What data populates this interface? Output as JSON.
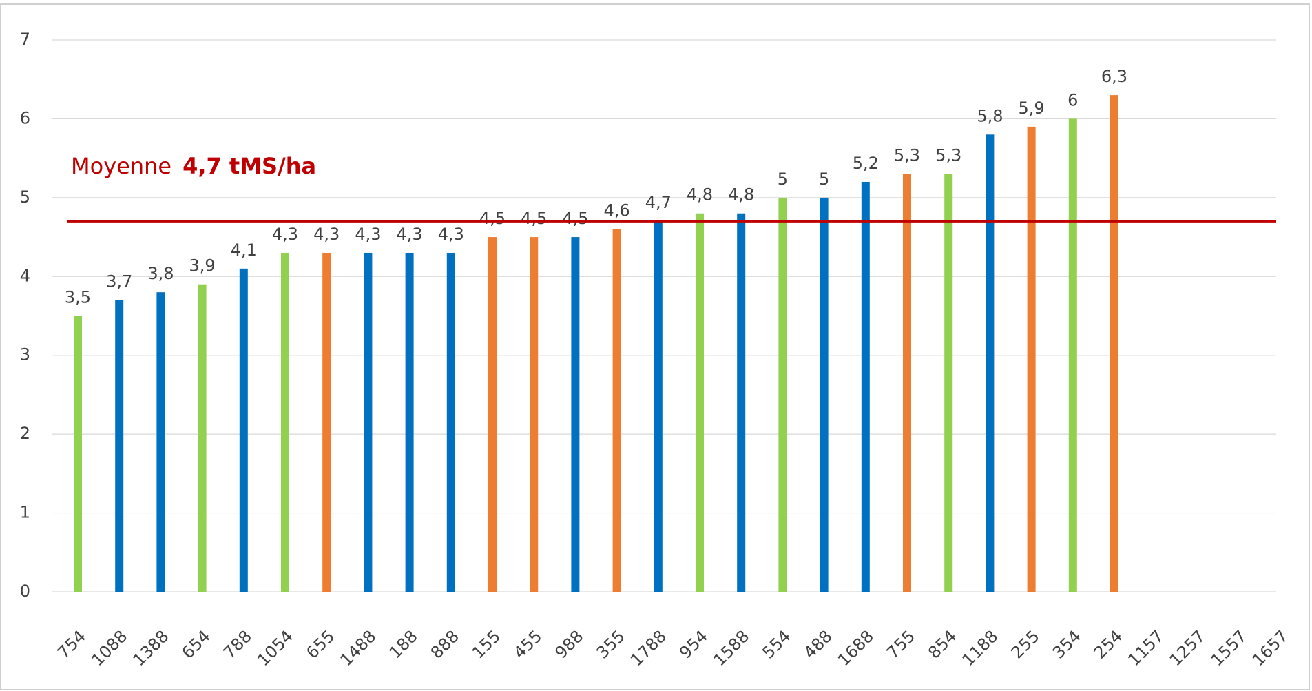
{
  "chart_data": {
    "type": "bar",
    "categories": [
      "754",
      "1088",
      "1388",
      "654",
      "788",
      "1054",
      "655",
      "1488",
      "188",
      "888",
      "155",
      "455",
      "988",
      "355",
      "1788",
      "954",
      "1588",
      "554",
      "488",
      "1688",
      "755",
      "854",
      "1188",
      "255",
      "354",
      "254",
      "1157",
      "1257",
      "1557",
      "1657"
    ],
    "values": [
      3.5,
      3.7,
      3.8,
      3.9,
      4.1,
      4.3,
      4.3,
      4.3,
      4.3,
      4.3,
      4.5,
      4.5,
      4.5,
      4.6,
      4.7,
      4.8,
      4.8,
      5,
      5,
      5.2,
      5.3,
      5.3,
      5.8,
      5.9,
      6,
      6.3,
      null,
      null,
      null,
      null
    ],
    "value_labels": [
      "3,5",
      "3,7",
      "3,8",
      "3,9",
      "4,1",
      "4,3",
      "4,3",
      "4,3",
      "4,3",
      "4,3",
      "4,5",
      "4,5",
      "4,5",
      "4,6",
      "4,7",
      "4,8",
      "4,8",
      "5",
      "5",
      "5,2",
      "5,3",
      "5,3",
      "5,8",
      "5,9",
      "6",
      "6,3",
      null,
      null,
      null,
      null
    ],
    "colors": [
      "#92d050",
      "#0070c0",
      "#0070c0",
      "#92d050",
      "#0070c0",
      "#92d050",
      "#ed7d31",
      "#0070c0",
      "#0070c0",
      "#0070c0",
      "#ed7d31",
      "#ed7d31",
      "#0070c0",
      "#ed7d31",
      "#0070c0",
      "#92d050",
      "#0070c0",
      "#92d050",
      "#0070c0",
      "#0070c0",
      "#ed7d31",
      "#92d050",
      "#0070c0",
      "#ed7d31",
      "#92d050",
      "#ed7d31",
      null,
      null,
      null,
      null
    ],
    "ylim": [
      0,
      7
    ],
    "yticks": [
      0,
      1,
      2,
      3,
      4,
      5,
      6,
      7
    ],
    "grid": true,
    "mean": 4.7,
    "mean_color": "#c00000",
    "mean_label": "Moyenne",
    "mean_value_label": "4,7 tMS/ha"
  }
}
